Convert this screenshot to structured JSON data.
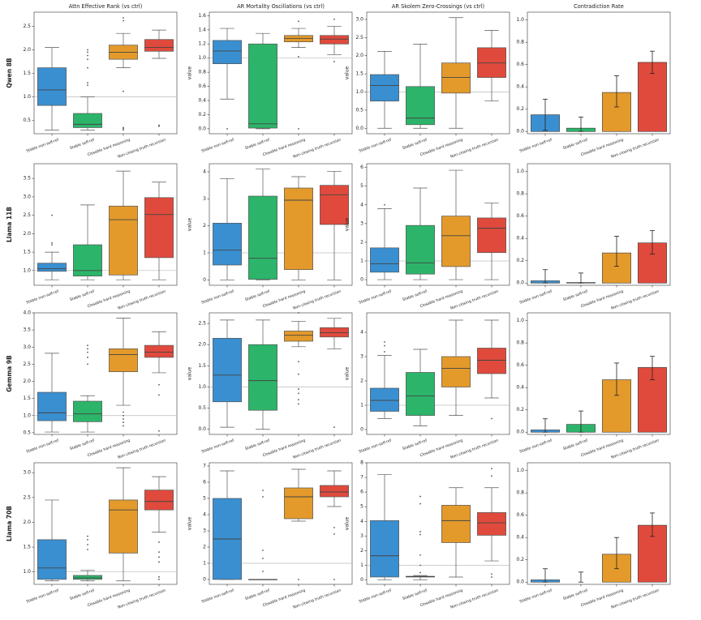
{
  "chart_data": [
    {
      "type": "box",
      "title": "Attn Effective Rank (vs ctrl)",
      "ylabel": "Qwen 8B",
      "categories": [
        "Stable non-self-ref",
        "Stable self-ref",
        "Closable hard reasoning",
        "Non-closing truth recursion"
      ],
      "colors": [
        "#3a8fd0",
        "#2cb56a",
        "#e39a2b",
        "#e04a3c"
      ],
      "reference_line": 1,
      "ylim": [
        0.22,
        2.8
      ],
      "yticks": [
        0.5,
        {
          "value": 1,
          "label": "1.0"
        },
        1.5,
        {
          "value": 2,
          "label": "2.0"
        },
        2.5
      ],
      "boxes": {
        "low": [
          0.3,
          0.3,
          1.62,
          1.82
        ],
        "q1": [
          0.82,
          0.35,
          1.8,
          1.97
        ],
        "median": [
          1.15,
          0.42,
          1.95,
          2.05
        ],
        "q3": [
          1.62,
          0.65,
          2.1,
          2.22
        ],
        "high": [
          2.05,
          1.0,
          2.35,
          2.42
        ],
        "outliers": [
          [],
          [
            1.25,
            1.3,
            1.62,
            1.8,
            1.88,
            1.95,
            2.0
          ],
          [
            0.3,
            0.33,
            0.35,
            1.12,
            2.62,
            2.68
          ],
          [
            0.38,
            0.4
          ]
        ]
      }
    },
    {
      "type": "box",
      "title": "AR Mortality Oscillations (vs ctrl)",
      "ylabel": "value",
      "categories": [
        "Stable non-self-ref",
        "Stable self-ref",
        "Closable hard reasoning",
        "Non-closing truth recursion"
      ],
      "colors": [
        "#3a8fd0",
        "#2cb56a",
        "#e39a2b",
        "#e04a3c"
      ],
      "reference_line": 1,
      "ylim": [
        -0.07,
        1.65
      ],
      "yticks": [
        {
          "value": 0,
          "label": "0.0"
        },
        0.2,
        0.4,
        0.6,
        0.8,
        {
          "value": 1,
          "label": "1.0"
        },
        1.2,
        1.4,
        1.6
      ],
      "boxes": {
        "low": [
          0.42,
          0.0,
          1.15,
          1.05
        ],
        "q1": [
          0.92,
          0.01,
          1.23,
          1.2
        ],
        "median": [
          1.1,
          0.07,
          1.28,
          1.27
        ],
        "q3": [
          1.25,
          1.2,
          1.32,
          1.32
        ],
        "high": [
          1.42,
          1.35,
          1.42,
          1.45
        ],
        "outliers": [
          [
            0.0
          ],
          [],
          [
            0.0,
            1.02,
            1.52
          ],
          [
            0.95,
            1.55
          ]
        ]
      }
    },
    {
      "type": "box",
      "title": "AR Skolem Zero-Crossings (vs ctrl)",
      "ylabel": "value",
      "categories": [
        "Stable non-self-ref",
        "Stable self-ref",
        "Closable hard reasoning",
        "Non-closing truth recursion"
      ],
      "colors": [
        "#3a8fd0",
        "#2cb56a",
        "#e39a2b",
        "#e04a3c"
      ],
      "reference_line": 1,
      "ylim": [
        -0.15,
        3.2
      ],
      "yticks": [
        {
          "value": 0,
          "label": "0.0"
        },
        0.5,
        {
          "value": 1,
          "label": "1.0"
        },
        1.5,
        {
          "value": 2,
          "label": "2.0"
        },
        2.5,
        {
          "value": 3,
          "label": "3.0"
        }
      ],
      "boxes": {
        "low": [
          0.0,
          0.0,
          0.0,
          0.75
        ],
        "q1": [
          0.75,
          0.1,
          0.97,
          1.4
        ],
        "median": [
          1.18,
          0.28,
          1.4,
          1.8
        ],
        "q3": [
          1.48,
          1.15,
          1.8,
          2.22
        ],
        "high": [
          2.12,
          2.32,
          3.05,
          2.7
        ],
        "outliers": [
          [],
          [],
          [],
          []
        ]
      }
    },
    {
      "type": "bar",
      "title": "Contradiction Rate",
      "categories": [
        "Stable non-self-ref",
        "Stable self-ref",
        "Closable hard reasoning",
        "Non-closing truth recursion"
      ],
      "colors": [
        "#3a8fd0",
        "#2cb56a",
        "#e39a2b",
        "#e04a3c"
      ],
      "ylim": [
        -0.02,
        1.07
      ],
      "yticks": [
        {
          "value": 0,
          "label": "0.0"
        },
        0.2,
        0.4,
        0.6,
        0.8,
        {
          "value": 1,
          "label": "1.0"
        }
      ],
      "values": [
        0.15,
        0.03,
        0.35,
        0.62
      ],
      "ci_low": [
        0.01,
        0.0,
        0.22,
        0.52
      ],
      "ci_high": [
        0.29,
        0.13,
        0.5,
        0.72
      ]
    },
    {
      "type": "box",
      "ylabel": "Llama 11B",
      "categories": [
        "Stable non-self-ref",
        "Stable self-ref",
        "Closable hard reasoning",
        "Non-closing truth recursion"
      ],
      "colors": [
        "#3a8fd0",
        "#2cb56a",
        "#e39a2b",
        "#e04a3c"
      ],
      "reference_line": 1,
      "ylim": [
        0.6,
        3.9
      ],
      "yticks": [
        {
          "value": 1,
          "label": "1.0"
        },
        1.5,
        {
          "value": 2,
          "label": "2.0"
        },
        2.5,
        {
          "value": 3,
          "label": "3.0"
        },
        3.5
      ],
      "boxes": {
        "low": [
          0.75,
          0.75,
          0.75,
          0.75
        ],
        "q1": [
          0.98,
          0.85,
          0.88,
          1.35
        ],
        "median": [
          1.05,
          1.0,
          2.38,
          2.52
        ],
        "q3": [
          1.2,
          1.7,
          2.75,
          2.98
        ],
        "high": [
          1.5,
          2.78,
          3.7,
          3.4
        ],
        "outliers": [
          [
            1.7,
            1.75,
            2.5
          ],
          [],
          [],
          []
        ]
      }
    },
    {
      "type": "box",
      "ylabel": "value",
      "categories": [
        "Stable non-self-ref",
        "Stable self-ref",
        "Closable hard reasoning",
        "Non-closing truth recursion"
      ],
      "colors": [
        "#3a8fd0",
        "#2cb56a",
        "#e39a2b",
        "#e04a3c"
      ],
      "reference_line": 1,
      "ylim": [
        -0.2,
        4.3
      ],
      "yticks": [
        0,
        1,
        2,
        3,
        4
      ],
      "boxes": {
        "low": [
          0.0,
          0.0,
          0.0,
          0.0
        ],
        "q1": [
          0.55,
          0.02,
          0.38,
          2.05
        ],
        "median": [
          1.1,
          0.8,
          2.95,
          3.15
        ],
        "q3": [
          2.1,
          3.1,
          3.4,
          3.5
        ],
        "high": [
          3.75,
          4.1,
          3.82,
          4.02
        ],
        "outliers": [
          [],
          [],
          [],
          []
        ]
      }
    },
    {
      "type": "box",
      "ylabel": "value",
      "categories": [
        "Stable non-self-ref",
        "Stable self-ref",
        "Closable hard reasoning",
        "Non-closing truth recursion"
      ],
      "colors": [
        "#3a8fd0",
        "#2cb56a",
        "#e39a2b",
        "#e04a3c"
      ],
      "reference_line": 1,
      "ylim": [
        -0.3,
        6.2
      ],
      "yticks": [
        0,
        1,
        2,
        3,
        4,
        5,
        6
      ],
      "boxes": {
        "low": [
          0.0,
          0.0,
          0.0,
          0.0
        ],
        "q1": [
          0.4,
          0.3,
          0.7,
          1.45
        ],
        "median": [
          0.85,
          0.9,
          2.35,
          2.75
        ],
        "q3": [
          1.7,
          2.9,
          3.4,
          3.3
        ],
        "high": [
          3.8,
          4.9,
          5.85,
          4.1
        ],
        "outliers": [
          [
            4.0
          ],
          [],
          [],
          []
        ]
      }
    },
    {
      "type": "bar",
      "categories": [
        "Stable non-self-ref",
        "Stable self-ref",
        "Closable hard reasoning",
        "Non-closing truth recursion"
      ],
      "colors": [
        "#3a8fd0",
        "#2cb56a",
        "#e39a2b",
        "#e04a3c"
      ],
      "ylim": [
        -0.02,
        1.07
      ],
      "yticks": [
        {
          "value": 0,
          "label": "0.0"
        },
        0.2,
        0.4,
        0.6,
        0.8,
        {
          "value": 1,
          "label": "1.0"
        }
      ],
      "values": [
        0.02,
        0.005,
        0.27,
        0.36
      ],
      "ci_low": [
        0.0,
        0.0,
        0.15,
        0.26
      ],
      "ci_high": [
        0.12,
        0.09,
        0.42,
        0.47
      ]
    },
    {
      "type": "box",
      "ylabel": "Gemma 9B",
      "categories": [
        "Stable non-self-ref",
        "Stable self-ref",
        "Closable hard reasoning",
        "Non-closing truth recursion"
      ],
      "colors": [
        "#3a8fd0",
        "#2cb56a",
        "#e39a2b",
        "#e04a3c"
      ],
      "reference_line": 1,
      "ylim": [
        0.45,
        4.0
      ],
      "yticks": [
        0.5,
        {
          "value": 1,
          "label": "1.0"
        },
        1.5,
        {
          "value": 2,
          "label": "2.0"
        },
        2.5,
        {
          "value": 3,
          "label": "3.0"
        },
        3.5,
        {
          "value": 4,
          "label": "4.0"
        }
      ],
      "boxes": {
        "low": [
          0.52,
          0.52,
          1.3,
          2.25
        ],
        "q1": [
          0.85,
          0.82,
          2.28,
          2.7
        ],
        "median": [
          1.08,
          1.05,
          2.78,
          2.85
        ],
        "q3": [
          1.68,
          1.42,
          2.95,
          3.05
        ],
        "high": [
          2.82,
          1.58,
          3.85,
          3.45
        ],
        "outliers": [
          [],
          [
            2.5,
            2.7,
            2.85,
            2.95,
            3.05
          ],
          [
            0.7,
            0.8,
            0.9,
            1.0,
            1.1
          ],
          [
            0.55,
            1.6,
            1.9
          ]
        ]
      }
    },
    {
      "type": "box",
      "ylabel": "value",
      "categories": [
        "Stable non-self-ref",
        "Stable self-ref",
        "Closable hard reasoning",
        "Non-closing truth recursion"
      ],
      "colors": [
        "#3a8fd0",
        "#2cb56a",
        "#e39a2b",
        "#e04a3c"
      ],
      "reference_line": 1,
      "ylim": [
        -0.12,
        2.75
      ],
      "yticks": [
        {
          "value": 0,
          "label": "0.0"
        },
        0.5,
        {
          "value": 1,
          "label": "1.0"
        },
        1.5,
        {
          "value": 2,
          "label": "2.0"
        },
        2.5
      ],
      "boxes": {
        "low": [
          0.05,
          0.0,
          1.95,
          1.9
        ],
        "q1": [
          0.65,
          0.45,
          2.08,
          2.18
        ],
        "median": [
          1.28,
          1.15,
          2.22,
          2.28
        ],
        "q3": [
          2.15,
          2.0,
          2.32,
          2.4
        ],
        "high": [
          2.58,
          2.58,
          2.55,
          2.62
        ],
        "outliers": [
          [],
          [],
          [
            0.6,
            0.7,
            0.85,
            0.95,
            1.3,
            1.6,
            2.75
          ],
          [
            0.05
          ]
        ]
      }
    },
    {
      "type": "box",
      "ylabel": "value",
      "categories": [
        "Stable non-self-ref",
        "Stable self-ref",
        "Closable hard reasoning",
        "Non-closing truth recursion"
      ],
      "colors": [
        "#3a8fd0",
        "#2cb56a",
        "#e39a2b",
        "#e04a3c"
      ],
      "reference_line": 1,
      "ylim": [
        -0.2,
        4.8
      ],
      "yticks": [
        0,
        1,
        2,
        3,
        4
      ],
      "boxes": {
        "low": [
          0.45,
          0.15,
          0.58,
          1.3
        ],
        "q1": [
          0.75,
          0.58,
          1.75,
          2.3
        ],
        "median": [
          1.2,
          1.38,
          2.52,
          2.85
        ],
        "q3": [
          1.7,
          2.35,
          3.0,
          3.35
        ],
        "high": [
          3.05,
          3.3,
          4.5,
          4.5
        ],
        "outliers": [
          [
            3.2,
            3.45,
            3.6
          ],
          [],
          [],
          [
            0.45
          ]
        ]
      }
    },
    {
      "type": "bar",
      "categories": [
        "Stable non-self-ref",
        "Stable self-ref",
        "Closable hard reasoning",
        "Non-closing truth recursion"
      ],
      "colors": [
        "#3a8fd0",
        "#2cb56a",
        "#e39a2b",
        "#e04a3c"
      ],
      "ylim": [
        -0.02,
        1.07
      ],
      "yticks": [
        {
          "value": 0,
          "label": "0.0"
        },
        0.2,
        0.4,
        0.6,
        0.8,
        {
          "value": 1,
          "label": "1.0"
        }
      ],
      "values": [
        0.02,
        0.07,
        0.47,
        0.58
      ],
      "ci_low": [
        0.0,
        0.0,
        0.33,
        0.47
      ],
      "ci_high": [
        0.12,
        0.19,
        0.62,
        0.68
      ]
    },
    {
      "type": "box",
      "ylabel": "Llama 70B",
      "categories": [
        "Stable non-self-ref",
        "Stable self-ref",
        "Closable hard reasoning",
        "Non-closing truth recursion"
      ],
      "colors": [
        "#3a8fd0",
        "#2cb56a",
        "#e39a2b",
        "#e04a3c"
      ],
      "reference_line": 1,
      "ylim": [
        0.75,
        3.2
      ],
      "yticks": [
        {
          "value": 1,
          "label": "1.0"
        },
        1.5,
        {
          "value": 2,
          "label": "2.0"
        },
        2.5,
        {
          "value": 3,
          "label": "3.0"
        }
      ],
      "boxes": {
        "low": [
          0.82,
          0.82,
          0.82,
          1.8
        ],
        "q1": [
          0.85,
          0.85,
          1.38,
          2.25
        ],
        "median": [
          1.08,
          0.88,
          2.25,
          2.42
        ],
        "q3": [
          1.65,
          0.93,
          2.45,
          2.65
        ],
        "high": [
          2.45,
          1.03,
          3.1,
          2.92
        ],
        "outliers": [
          [],
          [
            1.45,
            1.55,
            1.65,
            1.72
          ],
          [],
          [
            0.85,
            0.9,
            1.2,
            1.3,
            1.4,
            1.6
          ]
        ]
      }
    },
    {
      "type": "box",
      "ylabel": "value",
      "categories": [
        "Stable non-self-ref",
        "Stable self-ref",
        "Closable hard reasoning",
        "Non-closing truth recursion"
      ],
      "colors": [
        "#3a8fd0",
        "#2cb56a",
        "#e39a2b",
        "#e04a3c"
      ],
      "reference_line": 1,
      "ylim": [
        -0.3,
        7.2
      ],
      "yticks": [
        0,
        1,
        2,
        3,
        4,
        5,
        6,
        7
      ],
      "boxes": {
        "low": [
          0.0,
          0.0,
          3.6,
          4.5
        ],
        "q1": [
          0.0,
          0.0,
          3.75,
          5.1
        ],
        "median": [
          2.5,
          0.0,
          5.1,
          5.4
        ],
        "q3": [
          5.0,
          0.0,
          5.65,
          5.8
        ],
        "high": [
          6.7,
          0.0,
          6.8,
          6.7
        ],
        "outliers": [
          [],
          [
            0.5,
            1.3,
            1.8,
            5.1,
            5.5
          ],
          [
            0.0
          ],
          [
            0.0,
            2.8,
            3.2
          ]
        ]
      }
    },
    {
      "type": "box",
      "ylabel": "value",
      "categories": [
        "Stable non-self-ref",
        "Stable self-ref",
        "Closable hard reasoning",
        "Non-closing truth recursion"
      ],
      "colors": [
        "#3a8fd0",
        "#2cb56a",
        "#e39a2b",
        "#e04a3c"
      ],
      "reference_line": 1,
      "ylim": [
        -0.3,
        8.0
      ],
      "yticks": [
        0,
        1,
        2,
        3,
        4,
        5,
        6,
        7,
        8
      ],
      "boxes": {
        "low": [
          0.0,
          0.0,
          0.2,
          1.3
        ],
        "q1": [
          0.2,
          0.2,
          2.55,
          3.05
        ],
        "median": [
          1.65,
          0.22,
          4.05,
          3.9
        ],
        "q3": [
          4.05,
          0.25,
          5.1,
          4.6
        ],
        "high": [
          7.2,
          0.3,
          6.3,
          6.3
        ],
        "outliers": [
          [],
          [
            0.5,
            1.0,
            1.7,
            3.1,
            3.3,
            5.2,
            5.7
          ],
          [],
          [
            0.2,
            0.4,
            7.1,
            7.6
          ]
        ]
      }
    },
    {
      "type": "bar",
      "categories": [
        "Stable non-self-ref",
        "Stable self-ref",
        "Closable hard reasoning",
        "Non-closing truth recursion"
      ],
      "colors": [
        "#3a8fd0",
        "#2cb56a",
        "#e39a2b",
        "#e04a3c"
      ],
      "ylim": [
        -0.02,
        1.07
      ],
      "yticks": [
        {
          "value": 0,
          "label": "0.0"
        },
        0.2,
        0.4,
        0.6,
        0.8,
        {
          "value": 1,
          "label": "1.0"
        }
      ],
      "values": [
        0.02,
        0.0,
        0.25,
        0.51
      ],
      "ci_low": [
        0.0,
        0.0,
        0.12,
        0.41
      ],
      "ci_high": [
        0.12,
        0.09,
        0.4,
        0.62
      ]
    }
  ]
}
